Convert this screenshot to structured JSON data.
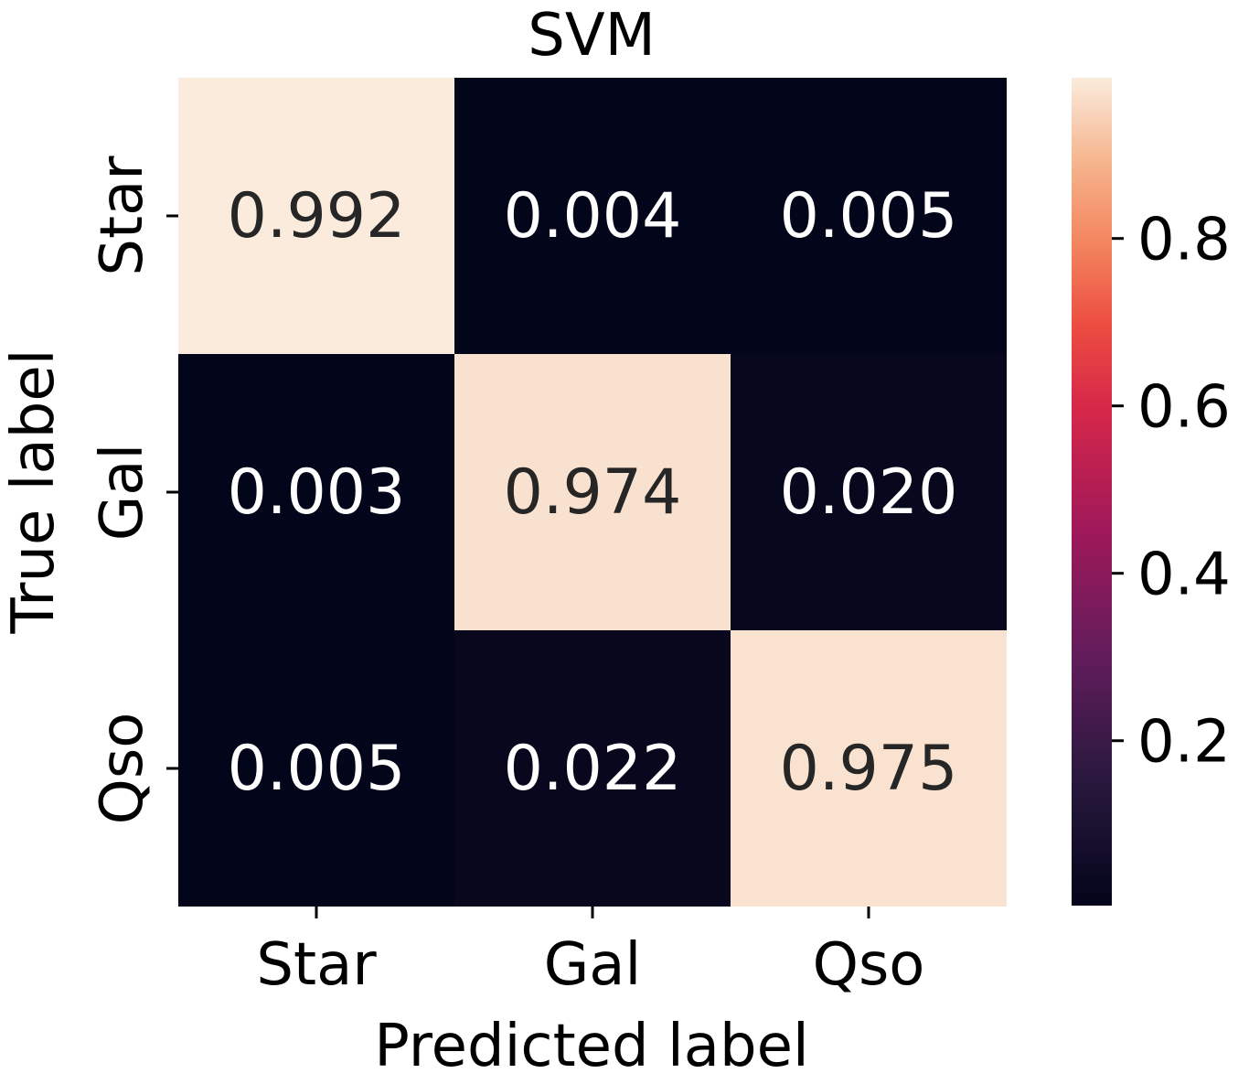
{
  "chart_data": {
    "type": "heatmap",
    "title": "SVM",
    "xlabel": "Predicted label",
    "ylabel": "True label",
    "x_categories": [
      "Star",
      "Gal",
      "Qso"
    ],
    "y_categories": [
      "Star",
      "Gal",
      "Qso"
    ],
    "values": [
      [
        0.992,
        0.004,
        0.005
      ],
      [
        0.003,
        0.974,
        0.02
      ],
      [
        0.005,
        0.022,
        0.975
      ]
    ],
    "cell_labels": [
      [
        "0.992",
        "0.004",
        "0.005"
      ],
      [
        "0.003",
        "0.974",
        "0.020"
      ],
      [
        "0.005",
        "0.022",
        "0.975"
      ]
    ],
    "colormap": "rocket",
    "colorbar": {
      "vmin": 0.003,
      "vmax": 0.992,
      "ticks": [
        0.2,
        0.4,
        0.6,
        0.8
      ],
      "tick_labels": [
        "0.2",
        "0.4",
        "0.6",
        "0.8"
      ]
    },
    "colors": {
      "low": "#03051a",
      "high": "#faebdd",
      "dark_text": "#262626",
      "light_text": "#ffffff"
    }
  }
}
